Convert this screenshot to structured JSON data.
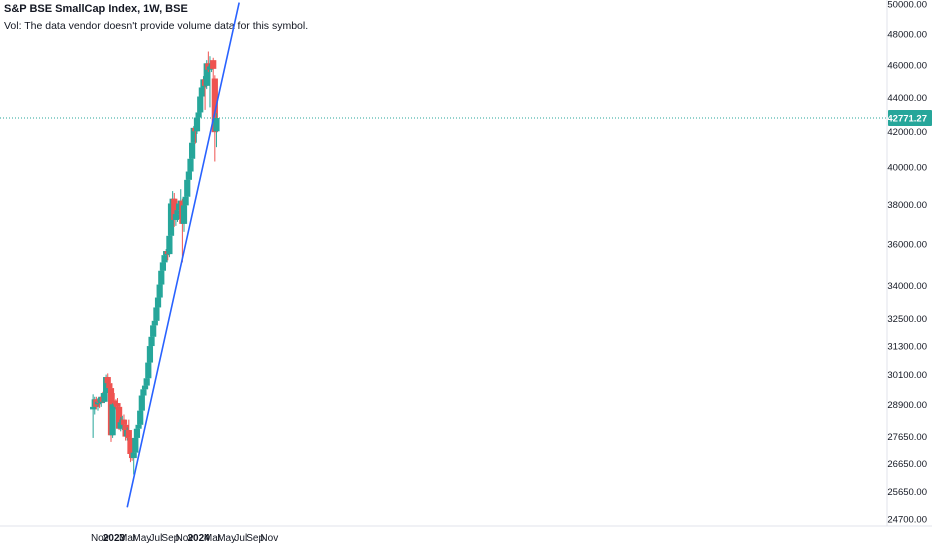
{
  "header": {
    "title": "S&P BSE SmallCap Index, 1W, BSE",
    "volume_note": "Vol: The data vendor doesn't provide volume data for this symbol."
  },
  "colors": {
    "up": "#26a69a",
    "down": "#ef5350",
    "trendline": "#2962ff",
    "price_label_bg": "#26a69a",
    "axis_text": "#131722",
    "price_line": "#26a69a"
  },
  "chart_data": {
    "type": "candlestick",
    "log_scale": true,
    "grid": false,
    "current_price": 42771.27,
    "current_price_label": "42771.27",
    "y_ticks": [
      "50000.00",
      "48000.00",
      "46000.00",
      "44000.00",
      "42000.00",
      "40000.00",
      "38000.00",
      "36000.00",
      "34000.00",
      "32500.00",
      "31300.00",
      "30100.00",
      "28900.00",
      "27650.00",
      "26650.00",
      "25650.00",
      "24700.00"
    ],
    "x_ticks": [
      {
        "label": "Nov",
        "date": "2022-11-01"
      },
      {
        "label": "2023",
        "date": "2023-01-01",
        "bold": true
      },
      {
        "label": "Mar",
        "date": "2023-03-01"
      },
      {
        "label": "May",
        "date": "2023-05-01"
      },
      {
        "label": "Jul",
        "date": "2023-07-01"
      },
      {
        "label": "Sep",
        "date": "2023-09-01"
      },
      {
        "label": "Nov",
        "date": "2023-11-01"
      },
      {
        "label": "2024",
        "date": "2024-01-01",
        "bold": true
      },
      {
        "label": "Mar",
        "date": "2024-03-01"
      },
      {
        "label": "May",
        "date": "2024-05-01"
      },
      {
        "label": "Jul",
        "date": "2024-07-01"
      },
      {
        "label": "Sep",
        "date": "2024-09-01"
      },
      {
        "label": "Nov",
        "date": "2024-11-01"
      }
    ],
    "candles": [
      {
        "date": "2022-10-03",
        "o": 28700,
        "h": 29300,
        "l": 27600,
        "c": 28800
      },
      {
        "date": "2022-10-10",
        "o": 28800,
        "h": 29200,
        "l": 28500,
        "c": 29100
      },
      {
        "date": "2022-10-17",
        "o": 29100,
        "h": 29200,
        "l": 28700,
        "c": 28800
      },
      {
        "date": "2022-10-24",
        "o": 28900,
        "h": 29150,
        "l": 28650,
        "c": 29000
      },
      {
        "date": "2022-10-31",
        "o": 29000,
        "h": 29150,
        "l": 28750,
        "c": 28950
      },
      {
        "date": "2022-11-07",
        "o": 28950,
        "h": 29350,
        "l": 28800,
        "c": 29200
      },
      {
        "date": "2022-11-14",
        "o": 29200,
        "h": 29400,
        "l": 28950,
        "c": 29000
      },
      {
        "date": "2022-11-21",
        "o": 29000,
        "h": 29450,
        "l": 28950,
        "c": 29350
      },
      {
        "date": "2022-11-28",
        "o": 29350,
        "h": 30100,
        "l": 29300,
        "c": 30000
      },
      {
        "date": "2022-12-05",
        "o": 30000,
        "h": 30150,
        "l": 29650,
        "c": 29750
      },
      {
        "date": "2022-12-12",
        "o": 29750,
        "h": 29850,
        "l": 29250,
        "c": 29550
      },
      {
        "date": "2022-12-19",
        "o": 29550,
        "h": 29650,
        "l": 27450,
        "c": 27700
      },
      {
        "date": "2022-12-26",
        "o": 27700,
        "h": 29050,
        "l": 27600,
        "c": 28900
      },
      {
        "date": "2023-01-02",
        "o": 29050,
        "h": 29350,
        "l": 28800,
        "c": 28950
      },
      {
        "date": "2023-01-09",
        "o": 28950,
        "h": 29100,
        "l": 28700,
        "c": 28900
      },
      {
        "date": "2023-01-16",
        "o": 28950,
        "h": 29150,
        "l": 28700,
        "c": 28800
      },
      {
        "date": "2023-01-23",
        "o": 28800,
        "h": 28900,
        "l": 27900,
        "c": 27950
      },
      {
        "date": "2023-01-30",
        "o": 27950,
        "h": 28400,
        "l": 27850,
        "c": 28200
      },
      {
        "date": "2023-02-06",
        "o": 28200,
        "h": 28450,
        "l": 27900,
        "c": 28300
      },
      {
        "date": "2023-02-13",
        "o": 28300,
        "h": 28500,
        "l": 28000,
        "c": 28100
      },
      {
        "date": "2023-02-20",
        "o": 28100,
        "h": 28300,
        "l": 27500,
        "c": 27650
      },
      {
        "date": "2023-02-27",
        "o": 27650,
        "h": 28000,
        "l": 27500,
        "c": 27900
      },
      {
        "date": "2023-03-06",
        "o": 27900,
        "h": 28300,
        "l": 27450,
        "c": 27600
      },
      {
        "date": "2023-03-13",
        "o": 27600,
        "h": 27800,
        "l": 26700,
        "c": 27000
      },
      {
        "date": "2023-03-20",
        "o": 27000,
        "h": 27200,
        "l": 26750,
        "c": 26850
      },
      {
        "date": "2023-03-27",
        "o": 26850,
        "h": 27100,
        "l": 26250,
        "c": 27050
      },
      {
        "date": "2023-04-03",
        "o": 27050,
        "h": 27700,
        "l": 26900,
        "c": 27600
      },
      {
        "date": "2023-04-10",
        "o": 27600,
        "h": 28050,
        "l": 27500,
        "c": 27950
      },
      {
        "date": "2023-04-17",
        "o": 27950,
        "h": 28200,
        "l": 27800,
        "c": 28100
      },
      {
        "date": "2023-04-24",
        "o": 28100,
        "h": 28750,
        "l": 28000,
        "c": 28650
      },
      {
        "date": "2023-05-01",
        "o": 28650,
        "h": 29300,
        "l": 28550,
        "c": 29250
      },
      {
        "date": "2023-05-08",
        "o": 29250,
        "h": 29600,
        "l": 29150,
        "c": 29500
      },
      {
        "date": "2023-05-15",
        "o": 29500,
        "h": 29750,
        "l": 29350,
        "c": 29650
      },
      {
        "date": "2023-05-22",
        "o": 29650,
        "h": 30000,
        "l": 29550,
        "c": 29950
      },
      {
        "date": "2023-05-29",
        "o": 29950,
        "h": 30700,
        "l": 29900,
        "c": 30600
      },
      {
        "date": "2023-06-05",
        "o": 30600,
        "h": 31400,
        "l": 30550,
        "c": 31300
      },
      {
        "date": "2023-06-12",
        "o": 31300,
        "h": 31800,
        "l": 31200,
        "c": 31700
      },
      {
        "date": "2023-06-19",
        "o": 31700,
        "h": 32250,
        "l": 31650,
        "c": 32200
      },
      {
        "date": "2023-06-26",
        "o": 32200,
        "h": 32700,
        "l": 32050,
        "c": 32400
      },
      {
        "date": "2023-07-03",
        "o": 32400,
        "h": 33100,
        "l": 32350,
        "c": 33000
      },
      {
        "date": "2023-07-10",
        "o": 33000,
        "h": 33550,
        "l": 32900,
        "c": 33450
      },
      {
        "date": "2023-07-17",
        "o": 33450,
        "h": 34150,
        "l": 33350,
        "c": 34050
      },
      {
        "date": "2023-07-24",
        "o": 34050,
        "h": 34800,
        "l": 34000,
        "c": 34700
      },
      {
        "date": "2023-07-31",
        "o": 34700,
        "h": 35200,
        "l": 34600,
        "c": 35100
      },
      {
        "date": "2023-08-07",
        "o": 35100,
        "h": 35550,
        "l": 35000,
        "c": 35450
      },
      {
        "date": "2023-08-14",
        "o": 35450,
        "h": 35750,
        "l": 35150,
        "c": 35650
      },
      {
        "date": "2023-08-21",
        "o": 35650,
        "h": 35850,
        "l": 35200,
        "c": 35500
      },
      {
        "date": "2023-08-28",
        "o": 35500,
        "h": 36500,
        "l": 35350,
        "c": 36400
      },
      {
        "date": "2023-09-04",
        "o": 36400,
        "h": 38200,
        "l": 36300,
        "c": 38050
      },
      {
        "date": "2023-09-11",
        "o": 38050,
        "h": 38700,
        "l": 37600,
        "c": 38300
      },
      {
        "date": "2023-09-18",
        "o": 38300,
        "h": 38600,
        "l": 36850,
        "c": 37200
      },
      {
        "date": "2023-09-25",
        "o": 37200,
        "h": 37700,
        "l": 36900,
        "c": 37500
      },
      {
        "date": "2023-10-02",
        "o": 37500,
        "h": 37850,
        "l": 37100,
        "c": 37700
      },
      {
        "date": "2023-10-09",
        "o": 37700,
        "h": 38100,
        "l": 37250,
        "c": 38050
      },
      {
        "date": "2023-10-16",
        "o": 38050,
        "h": 38800,
        "l": 37800,
        "c": 38200
      },
      {
        "date": "2023-10-23",
        "o": 38200,
        "h": 38300,
        "l": 35100,
        "c": 37000
      },
      {
        "date": "2023-10-30",
        "o": 37000,
        "h": 38050,
        "l": 36600,
        "c": 37950
      },
      {
        "date": "2023-11-06",
        "o": 37950,
        "h": 38500,
        "l": 37800,
        "c": 38400
      },
      {
        "date": "2023-11-13",
        "o": 38400,
        "h": 39400,
        "l": 38300,
        "c": 39300
      },
      {
        "date": "2023-11-20",
        "o": 39300,
        "h": 39800,
        "l": 39150,
        "c": 39750
      },
      {
        "date": "2023-11-27",
        "o": 39750,
        "h": 40550,
        "l": 39650,
        "c": 40450
      },
      {
        "date": "2023-12-04",
        "o": 40450,
        "h": 41450,
        "l": 40350,
        "c": 41350
      },
      {
        "date": "2023-12-11",
        "o": 41350,
        "h": 42300,
        "l": 41100,
        "c": 42200
      },
      {
        "date": "2023-12-18",
        "o": 42200,
        "h": 42350,
        "l": 41300,
        "c": 42000
      },
      {
        "date": "2023-12-25",
        "o": 42000,
        "h": 42900,
        "l": 41850,
        "c": 42800
      },
      {
        "date": "2024-01-01",
        "o": 42800,
        "h": 43200,
        "l": 42650,
        "c": 43100
      },
      {
        "date": "2024-01-08",
        "o": 43100,
        "h": 44200,
        "l": 43000,
        "c": 44050
      },
      {
        "date": "2024-01-15",
        "o": 44050,
        "h": 44800,
        "l": 43600,
        "c": 44600
      },
      {
        "date": "2024-01-22",
        "o": 44600,
        "h": 45300,
        "l": 44350,
        "c": 45100
      },
      {
        "date": "2024-01-29",
        "o": 45100,
        "h": 45400,
        "l": 43250,
        "c": 44700
      },
      {
        "date": "2024-02-05",
        "o": 44700,
        "h": 46300,
        "l": 44500,
        "c": 46100
      },
      {
        "date": "2024-02-12",
        "o": 46100,
        "h": 46850,
        "l": 45550,
        "c": 45700
      },
      {
        "date": "2024-02-19",
        "o": 45700,
        "h": 46550,
        "l": 43400,
        "c": 45900
      },
      {
        "date": "2024-02-26",
        "o": 45900,
        "h": 46200,
        "l": 45550,
        "c": 46050
      },
      {
        "date": "2024-03-04",
        "o": 46300,
        "h": 46450,
        "l": 44100,
        "c": 45750
      },
      {
        "date": "2024-03-11",
        "o": 45150,
        "h": 45350,
        "l": 40300,
        "c": 41950
      },
      {
        "date": "2024-03-18",
        "o": 42000,
        "h": 43050,
        "l": 41100,
        "c": 42771.27
      }
    ],
    "trendline": {
      "start": {
        "date": "2023-02-27",
        "price": 25100
      },
      "end": {
        "date": "2024-06-24",
        "price": 50100
      }
    }
  }
}
